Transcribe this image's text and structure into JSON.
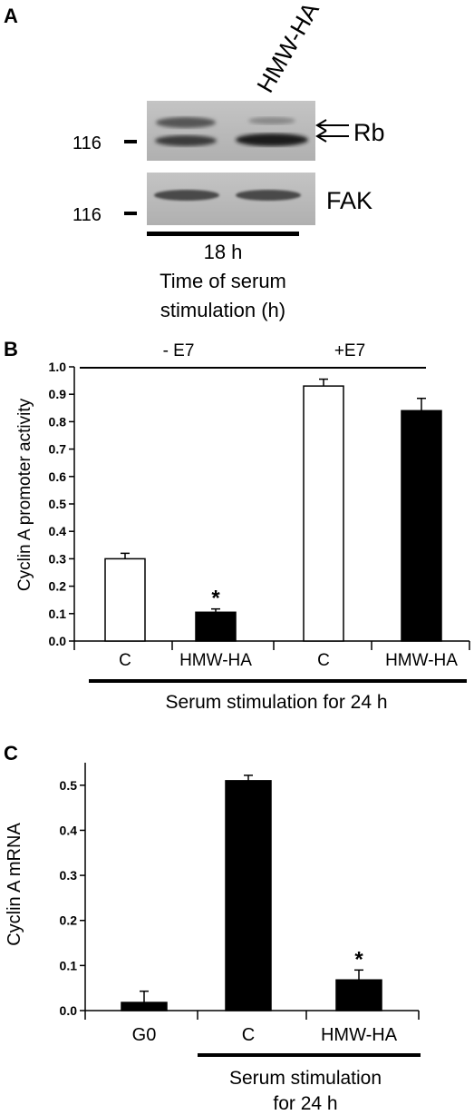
{
  "panel_a": {
    "letter": "A",
    "lane_label": "HMW-HA",
    "bands": [
      {
        "name": "Rb",
        "mw_marker": "116"
      },
      {
        "name": "FAK",
        "mw_marker": "116"
      }
    ],
    "time_label": "18 h",
    "xlabel_line1": "Time of serum",
    "xlabel_line2": "stimulation (h)"
  },
  "chart_data": [
    {
      "id": "B",
      "letter": "B",
      "type": "bar",
      "categories": [
        "C",
        "HMW-HA",
        "C",
        "HMW-HA"
      ],
      "values": [
        0.3,
        0.105,
        0.93,
        0.84
      ],
      "errors": [
        0.02,
        0.012,
        0.025,
        0.045
      ],
      "bar_colors": [
        "#ffffff",
        "#000000",
        "#ffffff",
        "#000000"
      ],
      "significance": [
        "",
        "*",
        "",
        ""
      ],
      "groups": [
        {
          "label": "- E7",
          "categories": [
            0,
            1
          ]
        },
        {
          "label": "+E7",
          "categories": [
            2,
            3
          ]
        }
      ],
      "ylabel": "Cyclin A promoter activity",
      "xlabel": "Serum stimulation for 24 h",
      "ylim": [
        0,
        1.0
      ],
      "yticks": [
        "0.0",
        "0.1",
        "0.2",
        "0.3",
        "0.4",
        "0.5",
        "0.6",
        "0.7",
        "0.8",
        "0.9",
        "1.0"
      ],
      "grid": false
    },
    {
      "id": "C",
      "letter": "C",
      "type": "bar",
      "categories": [
        "G0",
        "C",
        "HMW-HA"
      ],
      "values": [
        0.018,
        0.51,
        0.068
      ],
      "errors": [
        0.025,
        0.012,
        0.022
      ],
      "bar_colors": [
        "#000000",
        "#000000",
        "#000000"
      ],
      "significance": [
        "",
        "",
        "*"
      ],
      "ylabel": "Cyclin A mRNA",
      "xlabel_line1": "Serum stimulation",
      "xlabel_line2": "for 24 h",
      "ylim": [
        0,
        0.55
      ],
      "yticks": [
        "0.0",
        "0.1",
        "0.2",
        "0.3",
        "0.4",
        "0.5"
      ],
      "grid": false
    }
  ]
}
